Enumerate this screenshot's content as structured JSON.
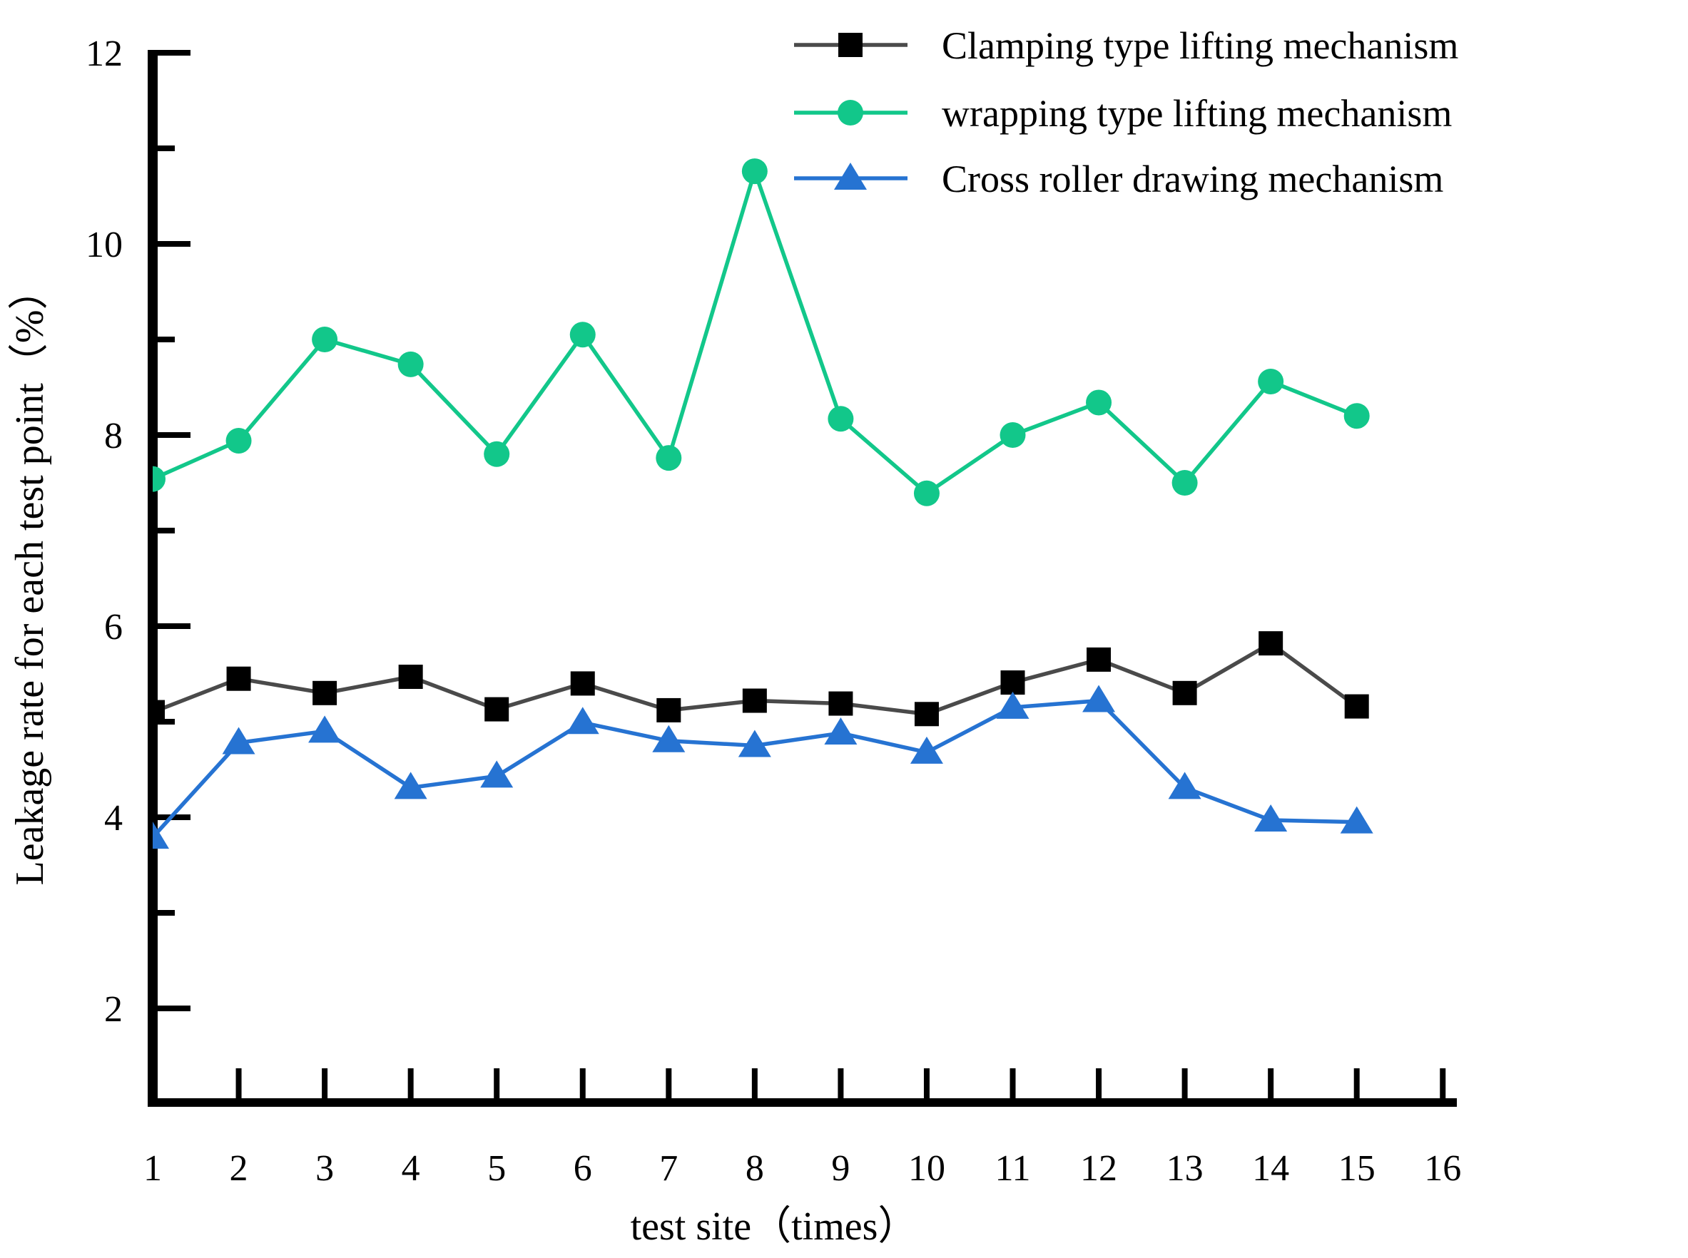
{
  "chart_data": {
    "type": "line",
    "title": "",
    "xlabel": "test site（times）",
    "ylabel": "Leakage rate for each test point（%）",
    "x_tick_labels": [
      "1",
      "2",
      "3",
      "4",
      "5",
      "6",
      "7",
      "8",
      "9",
      "10",
      "11",
      "12",
      "13",
      "14",
      "15",
      "16"
    ],
    "y_tick_labels_major": [
      "2",
      "4",
      "6",
      "8",
      "10",
      "12"
    ],
    "y_ticks_major": [
      2,
      4,
      6,
      8,
      10,
      12
    ],
    "y_ticks_minor": [
      3,
      5,
      7,
      9,
      11
    ],
    "ylim": [
      1.0,
      12
    ],
    "xlim": [
      1,
      16.15
    ],
    "grid": false,
    "legend_position": "top-right",
    "categories": [
      1,
      2,
      3,
      4,
      5,
      6,
      7,
      8,
      9,
      10,
      11,
      12,
      13,
      14,
      15
    ],
    "series": [
      {
        "name": "Clamping type lifting mechanism",
        "marker": "square",
        "marker_color": "#000000",
        "line_color": "#4a4a4a",
        "values": [
          5.1,
          5.45,
          5.3,
          5.47,
          5.13,
          5.4,
          5.12,
          5.22,
          5.19,
          5.08,
          5.41,
          5.65,
          5.3,
          5.82,
          5.16
        ]
      },
      {
        "name": "wrapping type lifting mechanism",
        "marker": "circle",
        "marker_color": "#12c78a",
        "line_color": "#12c78a",
        "values": [
          7.54,
          7.94,
          9.0,
          8.74,
          7.8,
          9.05,
          7.76,
          10.76,
          8.17,
          7.39,
          8.0,
          8.34,
          7.5,
          8.56,
          8.2
        ]
      },
      {
        "name": "Cross roller drawing mechanism",
        "marker": "triangle",
        "marker_color": "#2673d2",
        "line_color": "#2673d2",
        "values": [
          3.79,
          4.78,
          4.9,
          4.31,
          4.43,
          4.99,
          4.8,
          4.75,
          4.88,
          4.68,
          5.15,
          5.22,
          4.31,
          3.97,
          3.95
        ]
      }
    ]
  }
}
